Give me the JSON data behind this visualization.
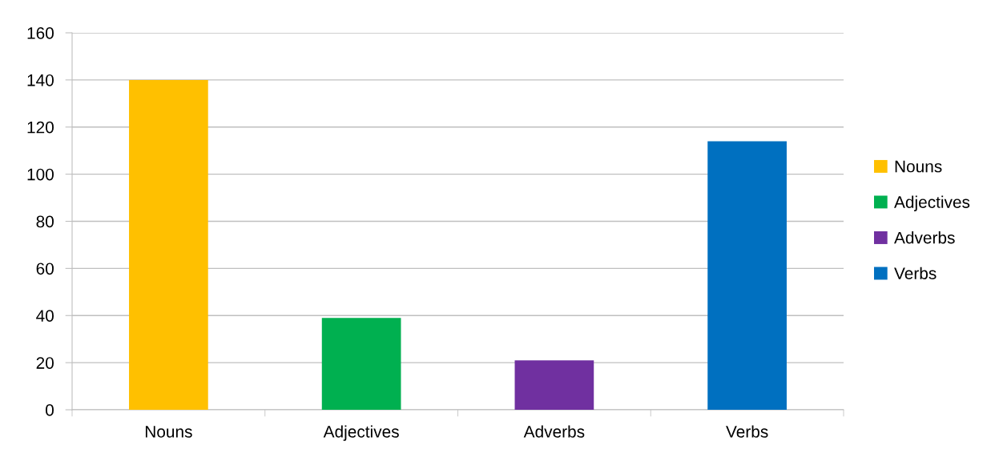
{
  "chart_data": {
    "type": "bar",
    "categories": [
      "Nouns",
      "Adjectives",
      "Adverbs",
      "Verbs"
    ],
    "series": [
      {
        "name": "Nouns",
        "color": "#ffc000",
        "values": [
          140,
          null,
          null,
          null
        ]
      },
      {
        "name": "Adjectives",
        "color": "#00b050",
        "values": [
          null,
          39,
          null,
          null
        ]
      },
      {
        "name": "Adverbs",
        "color": "#7030a0",
        "values": [
          null,
          null,
          21,
          null
        ]
      },
      {
        "name": "Verbs",
        "color": "#0070c0",
        "values": [
          null,
          null,
          null,
          114
        ]
      }
    ],
    "ylim": [
      0,
      160
    ],
    "yticks": [
      0,
      20,
      40,
      60,
      80,
      100,
      120,
      140,
      160
    ],
    "grid": "y",
    "legend": "right"
  }
}
